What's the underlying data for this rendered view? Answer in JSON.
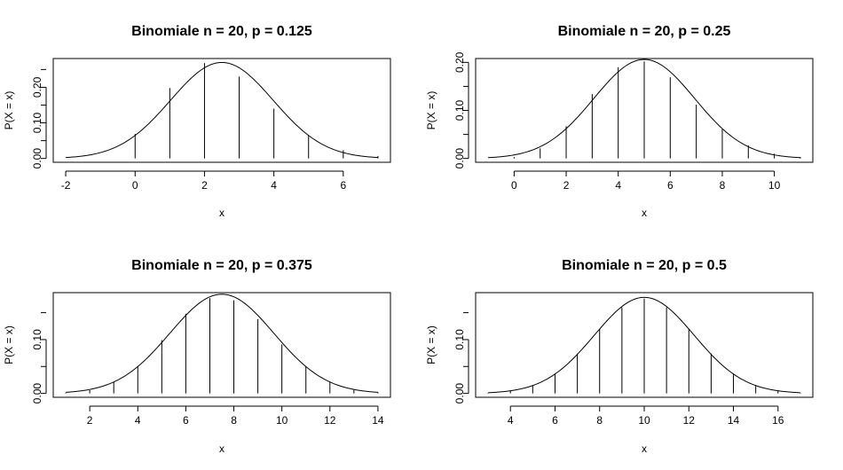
{
  "chart_data": [
    {
      "type": "line",
      "title": "Binomiale n = 20, p = 0.125",
      "xlabel": "x",
      "ylabel": "P(X = x)",
      "xlim": [
        -2,
        7
      ],
      "ylim": [
        0,
        0.27
      ],
      "x_ticks": [
        -2,
        0,
        2,
        4,
        6
      ],
      "y_ticks": [
        0.0,
        0.1,
        0.2
      ],
      "y_tick_labels": [
        "0.00",
        "0.10",
        "0.20"
      ],
      "pmf": [
        {
          "x": 0,
          "p": 0.069
        },
        {
          "x": 1,
          "p": 0.198
        },
        {
          "x": 2,
          "p": 0.268
        },
        {
          "x": 3,
          "p": 0.23
        },
        {
          "x": 4,
          "p": 0.14
        },
        {
          "x": 5,
          "p": 0.064
        },
        {
          "x": 6,
          "p": 0.023
        },
        {
          "x": 7,
          "p": 0.007
        }
      ],
      "normal_curve": {
        "mean": 2.5,
        "sd": 1.479
      }
    },
    {
      "type": "line",
      "title": "Binomiale n = 20, p = 0.25",
      "xlabel": "x",
      "ylabel": "P(X = x)",
      "xlim": [
        -1,
        11
      ],
      "ylim": [
        0,
        0.2
      ],
      "x_ticks": [
        0,
        2,
        4,
        6,
        8,
        10
      ],
      "y_ticks": [
        0.0,
        0.1,
        0.2
      ],
      "y_tick_labels": [
        "0.00",
        "0.10",
        "0.20"
      ],
      "pmf": [
        {
          "x": 0,
          "p": 0.003
        },
        {
          "x": 1,
          "p": 0.021
        },
        {
          "x": 2,
          "p": 0.067
        },
        {
          "x": 3,
          "p": 0.134
        },
        {
          "x": 4,
          "p": 0.19
        },
        {
          "x": 5,
          "p": 0.202
        },
        {
          "x": 6,
          "p": 0.169
        },
        {
          "x": 7,
          "p": 0.112
        },
        {
          "x": 8,
          "p": 0.061
        },
        {
          "x": 9,
          "p": 0.027
        },
        {
          "x": 10,
          "p": 0.01
        },
        {
          "x": 11,
          "p": 0.003
        }
      ],
      "normal_curve": {
        "mean": 5,
        "sd": 1.936
      }
    },
    {
      "type": "line",
      "title": "Binomiale n = 20, p = 0.375",
      "xlabel": "x",
      "ylabel": "P(X = x)",
      "xlim": [
        1,
        14
      ],
      "ylim": [
        0,
        0.18
      ],
      "x_ticks": [
        2,
        4,
        6,
        8,
        10,
        12,
        14
      ],
      "y_ticks": [
        0.0,
        0.1
      ],
      "y_tick_labels": [
        "0.00",
        "0.10"
      ],
      "pmf": [
        {
          "x": 1,
          "p": 0.001
        },
        {
          "x": 2,
          "p": 0.006
        },
        {
          "x": 3,
          "p": 0.021
        },
        {
          "x": 4,
          "p": 0.05
        },
        {
          "x": 5,
          "p": 0.099
        },
        {
          "x": 6,
          "p": 0.148
        },
        {
          "x": 7,
          "p": 0.177
        },
        {
          "x": 8,
          "p": 0.173
        },
        {
          "x": 9,
          "p": 0.138
        },
        {
          "x": 10,
          "p": 0.091
        },
        {
          "x": 11,
          "p": 0.05
        },
        {
          "x": 12,
          "p": 0.022
        },
        {
          "x": 13,
          "p": 0.008
        },
        {
          "x": 14,
          "p": 0.002
        }
      ],
      "normal_curve": {
        "mean": 7.5,
        "sd": 2.165
      }
    },
    {
      "type": "line",
      "title": "Binomiale n = 20, p = 0.5",
      "xlabel": "x",
      "ylabel": "P(X = x)",
      "xlim": [
        3,
        17
      ],
      "ylim": [
        0,
        0.18
      ],
      "x_ticks": [
        4,
        6,
        8,
        10,
        12,
        14,
        16
      ],
      "y_ticks": [
        0.0,
        0.1
      ],
      "y_tick_labels": [
        "0.00",
        "0.10"
      ],
      "pmf": [
        {
          "x": 3,
          "p": 0.001
        },
        {
          "x": 4,
          "p": 0.005
        },
        {
          "x": 5,
          "p": 0.015
        },
        {
          "x": 6,
          "p": 0.037
        },
        {
          "x": 7,
          "p": 0.074
        },
        {
          "x": 8,
          "p": 0.12
        },
        {
          "x": 9,
          "p": 0.16
        },
        {
          "x": 10,
          "p": 0.176
        },
        {
          "x": 11,
          "p": 0.16
        },
        {
          "x": 12,
          "p": 0.12
        },
        {
          "x": 13,
          "p": 0.074
        },
        {
          "x": 14,
          "p": 0.037
        },
        {
          "x": 15,
          "p": 0.015
        },
        {
          "x": 16,
          "p": 0.005
        },
        {
          "x": 17,
          "p": 0.001
        }
      ],
      "normal_curve": {
        "mean": 10,
        "sd": 2.236
      }
    }
  ]
}
